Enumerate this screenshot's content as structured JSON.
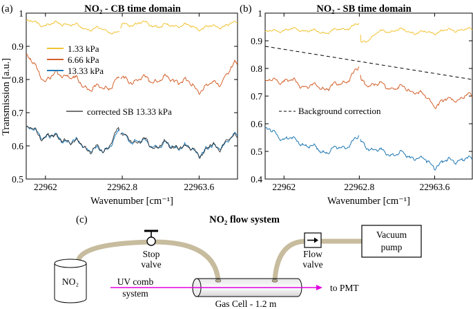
{
  "panel_a": {
    "label": "(a)",
    "title": "NO₂ - CB time domain",
    "ylabel": "Transmission [a.u.]",
    "xlabel": "Wavenumber [cm⁻¹]",
    "yticks": [
      "0.5",
      "0.6",
      "0.7",
      "0.8",
      "0.9",
      "1"
    ],
    "xticks": [
      "22962",
      "22962.8",
      "22963.6"
    ],
    "legend": [
      {
        "label": "1.33 kPa",
        "color": "#f2c230"
      },
      {
        "label": "6.66 kPa",
        "color": "#d4602a"
      },
      {
        "label": "13.33 kPa",
        "color": "#1f78b4"
      }
    ],
    "legend2": {
      "label": "corrected SB 13.33 kPa",
      "color": "#222222"
    }
  },
  "panel_b": {
    "label": "(b)",
    "title": "NO₂ - SB time domain",
    "xlabel": "Wavenumber [cm⁻¹]",
    "yticks": [
      "0.4",
      "0.5",
      "0.6",
      "0.7",
      "0.8",
      "0.9",
      "1"
    ],
    "xticks": [
      "22962",
      "22962.8",
      "22963.6"
    ],
    "annotation": "Background correction"
  },
  "chart_data": [
    {
      "type": "line",
      "title": "NO₂ - CB time domain",
      "xlabel": "Wavenumber [cm⁻¹]",
      "ylabel": "Transmission [a.u.]",
      "xlim": [
        22961.8,
        22964.0
      ],
      "ylim": [
        0.5,
        1.0
      ],
      "series": [
        {
          "name": "1.33 kPa",
          "color": "#f2c230",
          "x": [
            22961.8,
            22962.0,
            22962.2,
            22962.4,
            22962.6,
            22962.76,
            22962.8,
            22963.0,
            22963.2,
            22963.4,
            22963.6,
            22963.8,
            22964.0
          ],
          "y": [
            0.975,
            0.965,
            0.97,
            0.955,
            0.95,
            0.94,
            0.965,
            0.97,
            0.96,
            0.965,
            0.955,
            0.96,
            0.97
          ]
        },
        {
          "name": "6.66 kPa",
          "color": "#d4602a",
          "x": [
            22961.8,
            22962.0,
            22962.2,
            22962.4,
            22962.6,
            22962.76,
            22962.8,
            22963.0,
            22963.2,
            22963.4,
            22963.6,
            22963.8,
            22964.0
          ],
          "y": [
            0.87,
            0.8,
            0.82,
            0.78,
            0.77,
            0.8,
            0.8,
            0.8,
            0.8,
            0.8,
            0.77,
            0.79,
            0.85
          ]
        },
        {
          "name": "13.33 kPa",
          "color": "#1f78b4",
          "x": [
            22961.8,
            22962.0,
            22962.2,
            22962.4,
            22962.6,
            22962.76,
            22962.8,
            22963.0,
            22963.2,
            22963.4,
            22963.6,
            22963.8,
            22964.0
          ],
          "y": [
            0.65,
            0.63,
            0.62,
            0.6,
            0.58,
            0.64,
            0.63,
            0.61,
            0.6,
            0.6,
            0.58,
            0.6,
            0.63
          ]
        },
        {
          "name": "corrected SB 13.33 kPa",
          "color": "#222222",
          "x": [
            22961.8,
            22962.0,
            22962.2,
            22962.4,
            22962.6,
            22962.76,
            22962.8,
            22963.0,
            22963.2,
            22963.4,
            22963.6,
            22963.8,
            22964.0
          ],
          "y": [
            0.65,
            0.63,
            0.62,
            0.6,
            0.58,
            0.65,
            0.63,
            0.61,
            0.6,
            0.6,
            0.58,
            0.6,
            0.63
          ]
        }
      ]
    },
    {
      "type": "line",
      "title": "NO₂ - SB time domain",
      "xlabel": "Wavenumber [cm⁻¹]",
      "xlim": [
        22961.8,
        22964.0
      ],
      "ylim": [
        0.4,
        1.0
      ],
      "series": [
        {
          "name": "1.33 kPa",
          "color": "#f2c230",
          "x": [
            22961.8,
            22962.0,
            22962.2,
            22962.4,
            22962.6,
            22962.8,
            22962.82,
            22963.0,
            22963.2,
            22963.4,
            22963.6,
            22963.8,
            22964.0
          ],
          "y": [
            0.93,
            0.94,
            0.94,
            0.93,
            0.94,
            0.96,
            0.89,
            0.93,
            0.94,
            0.93,
            0.93,
            0.94,
            0.94
          ]
        },
        {
          "name": "6.66 kPa",
          "color": "#d4602a",
          "x": [
            22961.8,
            22962.0,
            22962.2,
            22962.4,
            22962.6,
            22962.8,
            22962.82,
            22963.0,
            22963.2,
            22963.4,
            22963.6,
            22963.8,
            22964.0
          ],
          "y": [
            0.75,
            0.76,
            0.74,
            0.73,
            0.74,
            0.8,
            0.75,
            0.74,
            0.73,
            0.72,
            0.67,
            0.69,
            0.7
          ]
        },
        {
          "name": "13.33 kPa",
          "color": "#1f78b4",
          "x": [
            22961.8,
            22962.0,
            22962.2,
            22962.4,
            22962.6,
            22962.8,
            22962.82,
            22963.0,
            22963.2,
            22963.4,
            22963.6,
            22963.8,
            22964.0
          ],
          "y": [
            0.58,
            0.55,
            0.53,
            0.5,
            0.51,
            0.55,
            0.53,
            0.5,
            0.49,
            0.48,
            0.45,
            0.47,
            0.47
          ]
        },
        {
          "name": "Background correction",
          "style": "dashed",
          "color": "#000000",
          "x": [
            22961.8,
            22964.0
          ],
          "y": [
            0.88,
            0.76
          ]
        }
      ]
    }
  ],
  "diagram": {
    "label": "(c)",
    "title": "NO₂ flow system",
    "source": "NO₂",
    "stop_valve": [
      "Stop",
      "valve"
    ],
    "flow_valve": [
      "Flow",
      "valve"
    ],
    "vacuum_pump": [
      "Vacuum",
      "pump"
    ],
    "uv_comb": [
      "UV comb",
      "system"
    ],
    "to_pmt": "to PMT",
    "gas_cell": "Gas Cell - 1.2 m",
    "tube_color": "#c7bc9e",
    "beam_color": "#e000e0"
  }
}
